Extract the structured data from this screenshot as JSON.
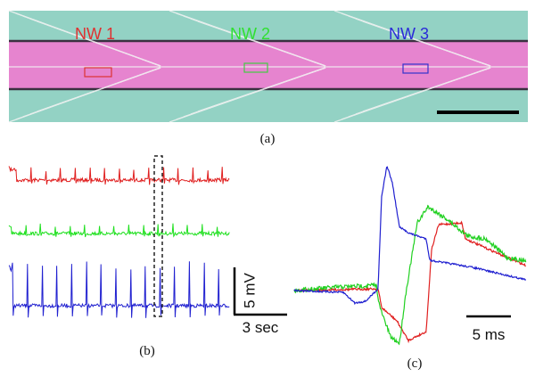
{
  "figure": {
    "panels": [
      {
        "label": "(a)",
        "nanowires": [
          "NW 1",
          "NW 2",
          "NW 3"
        ]
      },
      {
        "label": "(b)",
        "scale_voltage": "5 mV",
        "scale_time": "3 sec"
      },
      {
        "label": "(c)",
        "scale_time": "5 ms"
      }
    ]
  }
}
